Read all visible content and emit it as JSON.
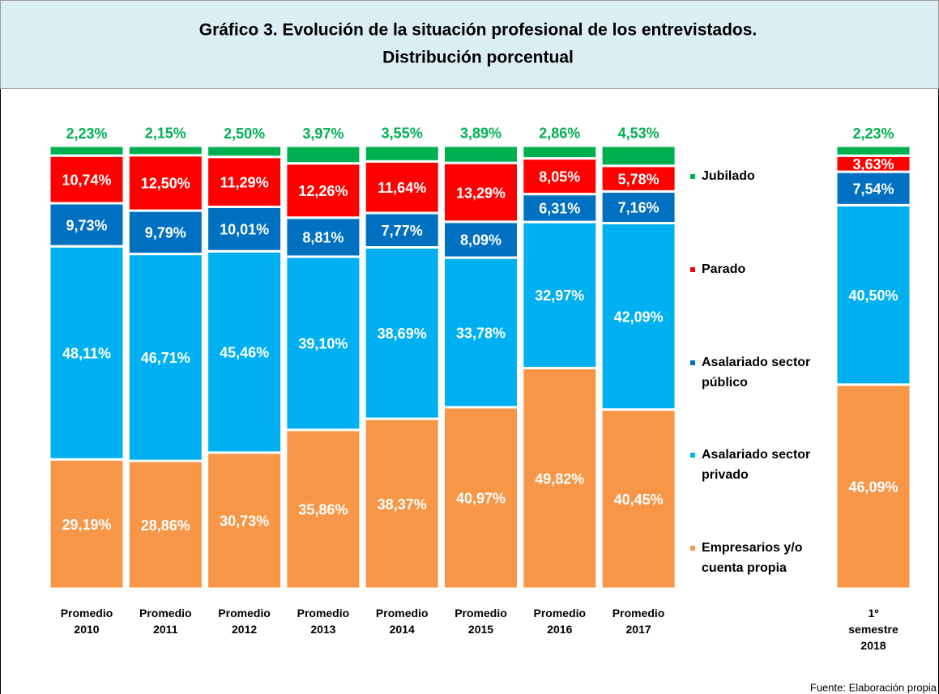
{
  "chart_data": {
    "type": "stacked_bar",
    "title": "Gráfico 3. Evolución de la situación profesional de los entrevistados.",
    "subtitle": "Distribución porcentual",
    "source": "Fuente: Elaboración propia",
    "categories": [
      "Promedio 2010",
      "Promedio 2011",
      "Promedio 2012",
      "Promedio 2013",
      "Promedio 2014",
      "Promedio 2015",
      "Promedio 2016",
      "Promedio 2017",
      "1º semestre 2018"
    ],
    "ylim": [
      0,
      100
    ],
    "series": [
      {
        "name": "Empresarios y/o cuenta propia",
        "color": "#f79646",
        "values": [
          29.19,
          28.86,
          30.73,
          35.86,
          38.37,
          40.97,
          49.82,
          40.45,
          46.09
        ],
        "value_labels": [
          "29,19%",
          "28,86%",
          "30,73%",
          "35,86%",
          "38,37%",
          "40,97%",
          "49,82%",
          "40,45%",
          "46,09%"
        ]
      },
      {
        "name": "Asalariado sector privado",
        "color": "#00b0f0",
        "values": [
          48.11,
          46.71,
          45.46,
          39.1,
          38.69,
          33.78,
          32.97,
          42.09,
          40.5
        ],
        "value_labels": [
          "48,11%",
          "46,71%",
          "45,46%",
          "39,10%",
          "38,69%",
          "33,78%",
          "32,97%",
          "42,09%",
          "40,50%"
        ]
      },
      {
        "name": "Asalariado sector público",
        "color": "#0070c0",
        "values": [
          9.73,
          9.79,
          10.01,
          8.81,
          7.77,
          8.09,
          6.31,
          7.16,
          7.54
        ],
        "value_labels": [
          "9,73%",
          "9,79%",
          "10,01%",
          "8,81%",
          "7,77%",
          "8,09%",
          "6,31%",
          "7,16%",
          "7,54%"
        ]
      },
      {
        "name": "Parado",
        "color": "#ff0000",
        "values": [
          10.74,
          12.5,
          11.29,
          12.26,
          11.64,
          13.29,
          8.05,
          5.78,
          3.63
        ],
        "value_labels": [
          "10,74%",
          "12,50%",
          "11,29%",
          "12,26%",
          "11,64%",
          "13,29%",
          "8,05%",
          "5,78%",
          "3,63%"
        ]
      },
      {
        "name": "Jubilado",
        "color": "#00b050",
        "values": [
          2.23,
          2.15,
          2.5,
          3.97,
          3.55,
          3.89,
          2.86,
          4.53,
          2.23
        ],
        "value_labels": [
          "2,23%",
          "2,15%",
          "2,50%",
          "3,97%",
          "3,55%",
          "3,89%",
          "2,86%",
          "4,53%",
          "2,23%"
        ]
      }
    ]
  }
}
